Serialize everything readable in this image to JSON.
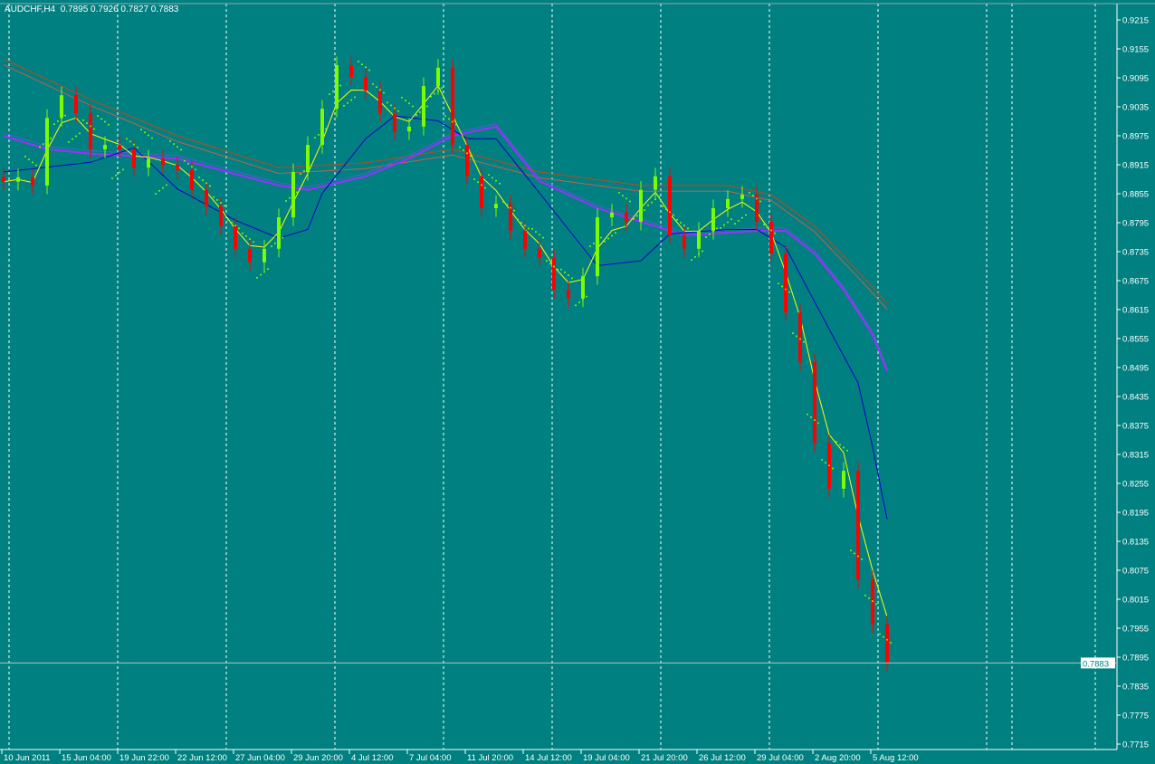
{
  "header": {
    "symbol": "AUDCHF,H4",
    "ohlc": "0.7895 0.7926 0.7827 0.7883"
  },
  "colors": {
    "background": "#008080",
    "bull": "#7CFC00",
    "bear": "#FF0000",
    "fast_ma": "#FFFF00",
    "mid_ma": "#0000C8",
    "slow_ma": "#9B30FF",
    "long_ma": "#A0522D",
    "sar": "#7CFC00",
    "axis": "#FFFFFF"
  },
  "chart_data": {
    "type": "candlestick",
    "title": "AUDCHF,H4",
    "ylim": [
      0.77,
      0.9245
    ],
    "y_ticks": [
      "0.9215",
      "0.9155",
      "0.9095",
      "0.9035",
      "0.8975",
      "0.8915",
      "0.8855",
      "0.8795",
      "0.8735",
      "0.8675",
      "0.8615",
      "0.8555",
      "0.8495",
      "0.8435",
      "0.8375",
      "0.8315",
      "0.8255",
      "0.8195",
      "0.8135",
      "0.8075",
      "0.8015",
      "0.7955",
      "0.7895",
      "0.7835",
      "0.7775",
      "0.7715"
    ],
    "x_ticks": [
      "10 Jun 2011",
      "15 Jun 04:00",
      "19 Jun 22:00",
      "22 Jun 12:00",
      "27 Jun 04:00",
      "29 Jun 20:00",
      "4 Jul 12:00",
      "7 Jul 04:00",
      "11 Jul 20:00",
      "14 Jul 12:00",
      "19 Jul 04:00",
      "21 Jul 20:00",
      "26 Jul 12:00",
      "29 Jul 04:00",
      "2 Aug 20:00",
      "5 Aug 12:00"
    ],
    "current_price": "0.7883",
    "close": [
      0.888,
      0.8889,
      0.8872,
      0.9012,
      0.9059,
      0.9022,
      0.8947,
      0.8956,
      0.8947,
      0.8909,
      0.8928,
      0.8915,
      0.8904,
      0.8863,
      0.8829,
      0.8788,
      0.8741,
      0.8713,
      0.8741,
      0.8806,
      0.89,
      0.8956,
      0.9031,
      0.9121,
      0.9097,
      0.9069,
      0.9022,
      0.8984,
      0.8994,
      0.9078,
      0.9116,
      0.8956,
      0.8891,
      0.8825,
      0.8834,
      0.8778,
      0.8741,
      0.8722,
      0.8656,
      0.8638,
      0.8684,
      0.8806,
      0.8816,
      0.8797,
      0.8863,
      0.8891,
      0.8769,
      0.8741,
      0.8778,
      0.8825,
      0.8844,
      0.8853,
      0.8797,
      0.8731,
      0.8609,
      0.8506,
      0.8338,
      0.8244,
      0.8281,
      0.8056,
      0.7963,
      0.7883
    ],
    "indicators": {
      "mid_ma": [
        [
          0,
          0.89
        ],
        [
          6,
          0.892
        ],
        [
          9,
          0.895
        ],
        [
          12,
          0.8865
        ],
        [
          16,
          0.88
        ],
        [
          19,
          0.8763
        ],
        [
          21,
          0.8781
        ],
        [
          22,
          0.8856
        ],
        [
          25,
          0.8969
        ],
        [
          27,
          0.9016
        ],
        [
          30,
          0.9006
        ],
        [
          32,
          0.8969
        ],
        [
          34,
          0.8969
        ],
        [
          36,
          0.8894
        ],
        [
          39,
          0.8781
        ],
        [
          41,
          0.8706
        ],
        [
          44,
          0.8716
        ],
        [
          46,
          0.8772
        ],
        [
          50,
          0.8781
        ],
        [
          52,
          0.8781
        ],
        [
          54,
          0.8744
        ],
        [
          56,
          0.8631
        ],
        [
          59,
          0.8463
        ],
        [
          60,
          0.8331
        ],
        [
          61,
          0.8181
        ]
      ],
      "slow_ma": [
        [
          0,
          0.8975
        ],
        [
          3,
          0.8947
        ],
        [
          6,
          0.8938
        ],
        [
          12,
          0.8928
        ],
        [
          19,
          0.8872
        ],
        [
          21,
          0.8863
        ],
        [
          25,
          0.8891
        ],
        [
          28,
          0.8928
        ],
        [
          31,
          0.8975
        ],
        [
          34,
          0.8994
        ],
        [
          37,
          0.8881
        ],
        [
          41,
          0.8825
        ],
        [
          44,
          0.8797
        ],
        [
          47,
          0.8769
        ],
        [
          52,
          0.8778
        ],
        [
          54,
          0.8778
        ],
        [
          56,
          0.8731
        ],
        [
          58,
          0.8656
        ],
        [
          60,
          0.8563
        ],
        [
          61,
          0.8488
        ]
      ],
      "long_ma": [
        [
          0,
          0.9134
        ],
        [
          6,
          0.905
        ],
        [
          12,
          0.8975
        ],
        [
          19,
          0.8909
        ],
        [
          25,
          0.8919
        ],
        [
          31,
          0.8947
        ],
        [
          37,
          0.89
        ],
        [
          44,
          0.8872
        ],
        [
          50,
          0.8872
        ],
        [
          53,
          0.8853
        ],
        [
          56,
          0.8788
        ],
        [
          59,
          0.8694
        ],
        [
          61,
          0.8628
        ]
      ]
    }
  }
}
